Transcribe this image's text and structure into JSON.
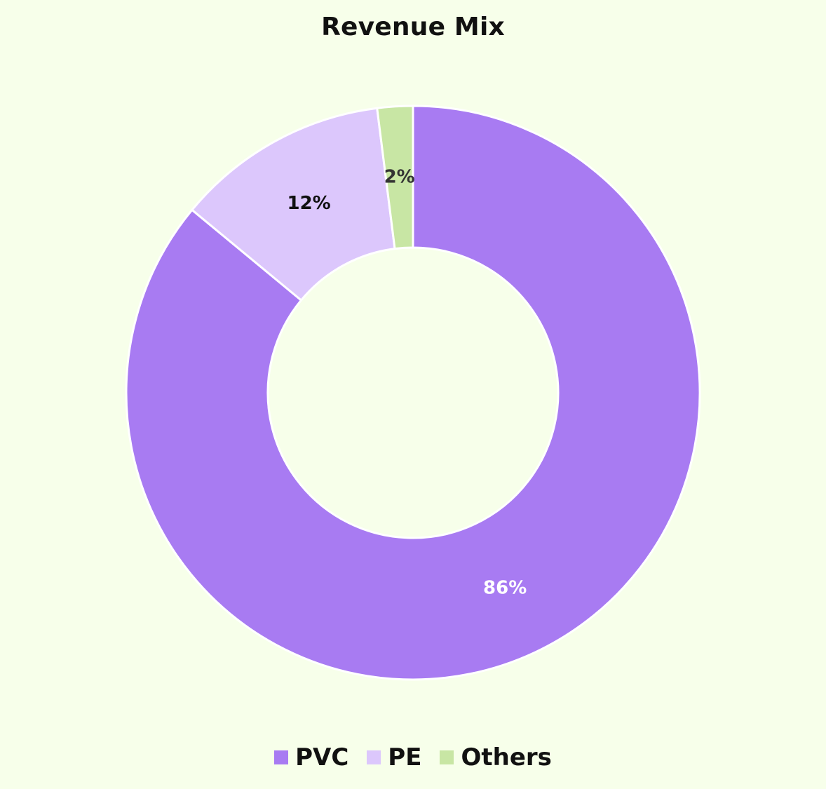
{
  "chart_data": {
    "type": "pie",
    "variant": "donut",
    "title": "Revenue Mix",
    "categories": [
      "PVC",
      "PE",
      "Others"
    ],
    "values": [
      86,
      12,
      2
    ],
    "labels": [
      "86%",
      "12%",
      "2%"
    ],
    "colors": [
      "#a87bf2",
      "#dcc7fc",
      "#c8e6a4"
    ],
    "label_colors": [
      "#ffffff",
      "#111111",
      "#333333"
    ],
    "legend": "bottom-center"
  }
}
